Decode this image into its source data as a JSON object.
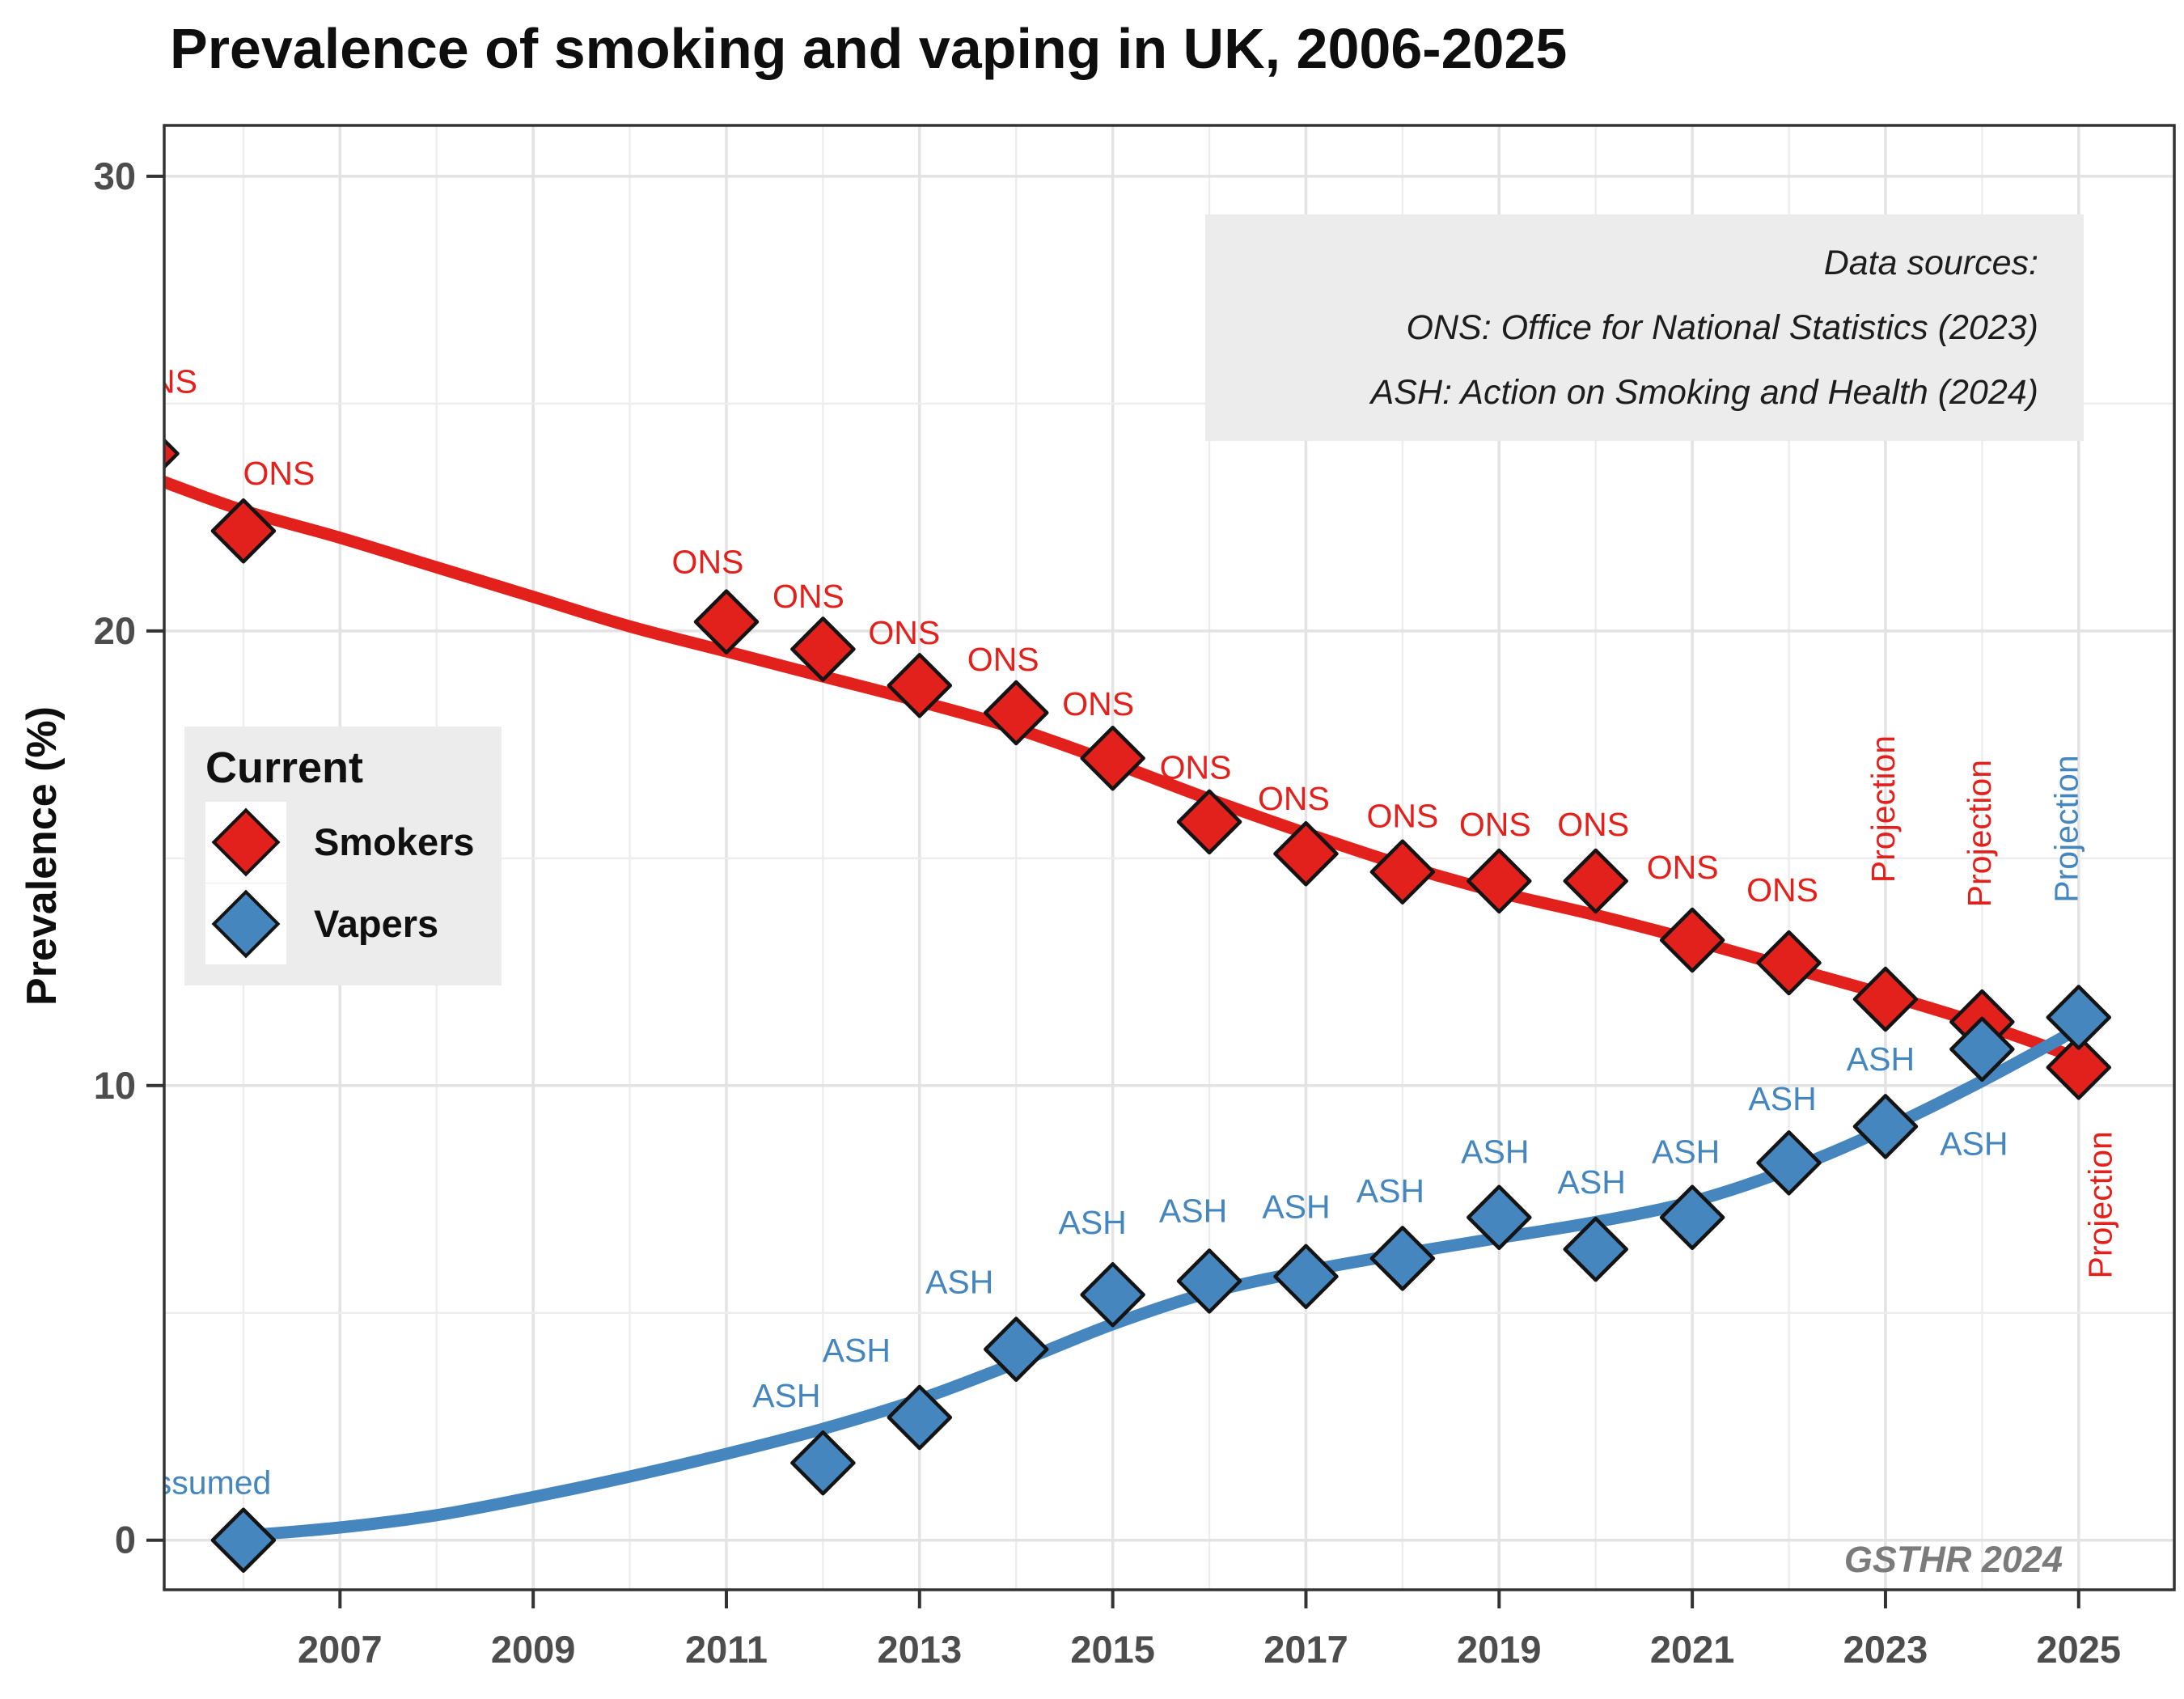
{
  "title": "Prevalence of smoking and vaping in UK, 2006-2025",
  "watermark": "GSTHR 2024",
  "legend": {
    "title": "Current",
    "items": [
      {
        "label": "Smokers",
        "color": "#E3211C"
      },
      {
        "label": "Vapers",
        "color": "#4586BE"
      }
    ]
  },
  "sources_box": {
    "lines": [
      "Data sources:",
      "ONS: Office for National Statistics (2023)",
      "ASH: Action on Smoking and Health (2024)"
    ]
  },
  "axes": {
    "y_title": "Prevalence (%)"
  },
  "colors": {
    "smokers": "#E3211C",
    "vapers": "#4586BE",
    "marker_outline": "#141414",
    "grid_major": "#E3E3E3",
    "grid_minor": "#EDEDED",
    "panel_border": "#333333",
    "axis_text": "#4D4D4D",
    "watermark": "#7B7B7B"
  },
  "chart_data": {
    "type": "line",
    "title": "Prevalence of smoking and vaping in UK, 2006-2025",
    "xlabel": "",
    "ylabel": "Prevalence (%)",
    "xlim": [
      2005.18,
      2025.99
    ],
    "ylim": [
      -1.09,
      31.12
    ],
    "x_ticks": [
      2007,
      2009,
      2011,
      2013,
      2015,
      2017,
      2019,
      2021,
      2023,
      2025
    ],
    "y_ticks": [
      0,
      10,
      20,
      30
    ],
    "y_minor_gridlines": [
      5,
      15,
      25
    ],
    "x_gridline_years_minor": [
      2006,
      2008,
      2010,
      2012,
      2014,
      2016,
      2018,
      2020,
      2022,
      2024
    ],
    "grid": true,
    "legend_position": "left-middle",
    "series": [
      {
        "name": "Smokers",
        "color": "#E3211C",
        "points": [
          {
            "year": 2005,
            "value": 23.9,
            "label": "ONS",
            "dx": 18,
            "dy": -86
          },
          {
            "year": 2006,
            "value": 22.2,
            "label": "ONS",
            "dx": 44,
            "dy": -68
          },
          {
            "year": 2011,
            "value": 20.2,
            "label": "ONS",
            "dx": -23,
            "dy": -71
          },
          {
            "year": 2012,
            "value": 19.6,
            "label": "ONS",
            "dx": -18,
            "dy": -62
          },
          {
            "year": 2013,
            "value": 18.8,
            "label": "ONS",
            "dx": -19,
            "dy": -62
          },
          {
            "year": 2014,
            "value": 18.2,
            "label": "ONS",
            "dx": -16,
            "dy": -63
          },
          {
            "year": 2015,
            "value": 17.2,
            "label": "ONS",
            "dx": -18,
            "dy": -64
          },
          {
            "year": 2016,
            "value": 15.8,
            "label": "ONS",
            "dx": -17,
            "dy": -64
          },
          {
            "year": 2017,
            "value": 15.1,
            "label": "ONS",
            "dx": -15,
            "dy": -65
          },
          {
            "year": 2018,
            "value": 14.7,
            "label": "ONS",
            "dx": 0,
            "dy": -66
          },
          {
            "year": 2019,
            "value": 14.5,
            "label": "ONS",
            "dx": -5,
            "dy": -67
          },
          {
            "year": 2020,
            "value": 14.5,
            "label": "ONS",
            "dx": -3,
            "dy": -67
          },
          {
            "year": 2021,
            "value": 13.2,
            "label": "ONS",
            "dx": -12,
            "dy": -87
          },
          {
            "year": 2022,
            "value": 12.7,
            "label": "ONS",
            "dx": -8,
            "dy": -87
          },
          {
            "year": 2023,
            "value": 11.9,
            "label": "Projection",
            "dx": 0,
            "dy": -235,
            "rot": -90
          },
          {
            "year": 2024,
            "value": 11.4,
            "label": "Projection",
            "dx": 0,
            "dy": -233,
            "rot": -90
          },
          {
            "year": 2025,
            "value": 10.4,
            "label": "Projection",
            "dx": 30,
            "dy": 170,
            "rot": -90
          }
        ],
        "trend": [
          [
            2005.15,
            23.3
          ],
          [
            2006,
            22.65
          ],
          [
            2007,
            22.05
          ],
          [
            2008,
            21.4
          ],
          [
            2009,
            20.75
          ],
          [
            2010,
            20.1
          ],
          [
            2011,
            19.55
          ],
          [
            2012,
            19.0
          ],
          [
            2013,
            18.45
          ],
          [
            2014,
            17.85
          ],
          [
            2015,
            17.1
          ],
          [
            2016,
            16.3
          ],
          [
            2017,
            15.55
          ],
          [
            2018,
            14.85
          ],
          [
            2019,
            14.25
          ],
          [
            2020,
            13.75
          ],
          [
            2021,
            13.2
          ],
          [
            2022,
            12.6
          ],
          [
            2023,
            12.0
          ],
          [
            2024,
            11.35
          ],
          [
            2025,
            10.6
          ]
        ]
      },
      {
        "name": "Vapers",
        "color": "#4586BE",
        "points": [
          {
            "year": 2006,
            "value": 0.0,
            "label": "Assumed",
            "dx": -51,
            "dy": -68
          },
          {
            "year": 2012,
            "value": 1.7,
            "label": "ASH",
            "dx": -45,
            "dy": -80
          },
          {
            "year": 2013,
            "value": 2.7,
            "label": "ASH",
            "dx": -78,
            "dy": -80
          },
          {
            "year": 2014,
            "value": 4.2,
            "label": "ASH",
            "dx": -70,
            "dy": -80
          },
          {
            "year": 2015,
            "value": 5.4,
            "label": "ASH",
            "dx": -25,
            "dy": -86
          },
          {
            "year": 2016,
            "value": 5.7,
            "label": "ASH",
            "dx": -20,
            "dy": -84
          },
          {
            "year": 2017,
            "value": 5.8,
            "label": "ASH",
            "dx": -12,
            "dy": -83
          },
          {
            "year": 2018,
            "value": 6.2,
            "label": "ASH",
            "dx": -15,
            "dy": -80
          },
          {
            "year": 2019,
            "value": 7.1,
            "label": "ASH",
            "dx": -5,
            "dy": -78
          },
          {
            "year": 2020,
            "value": 6.4,
            "label": "ASH",
            "dx": -5,
            "dy": -80
          },
          {
            "year": 2021,
            "value": 7.1,
            "label": "ASH",
            "dx": -8,
            "dy": -78
          },
          {
            "year": 2022,
            "value": 8.3,
            "label": "ASH",
            "dx": -8,
            "dy": -76
          },
          {
            "year": 2023,
            "value": 9.1,
            "label": "ASH",
            "dx": -6,
            "dy": -80
          },
          {
            "year": 2024,
            "value": 10.8,
            "label": "ASH",
            "dx": -10,
            "dy": 120
          },
          {
            "year": 2025,
            "value": 11.5,
            "label": "Projection",
            "dx": -12,
            "dy": -233,
            "rot": -90
          }
        ],
        "trend": [
          [
            2006,
            0.1
          ],
          [
            2007,
            0.28
          ],
          [
            2008,
            0.55
          ],
          [
            2009,
            0.95
          ],
          [
            2010,
            1.4
          ],
          [
            2011,
            1.9
          ],
          [
            2012,
            2.45
          ],
          [
            2013,
            3.1
          ],
          [
            2014,
            3.9
          ],
          [
            2015,
            4.75
          ],
          [
            2016,
            5.45
          ],
          [
            2017,
            5.92
          ],
          [
            2018,
            6.3
          ],
          [
            2019,
            6.65
          ],
          [
            2020,
            7.0
          ],
          [
            2021,
            7.45
          ],
          [
            2022,
            8.15
          ],
          [
            2023,
            9.05
          ],
          [
            2024,
            10.1
          ],
          [
            2025,
            11.25
          ]
        ]
      }
    ]
  }
}
